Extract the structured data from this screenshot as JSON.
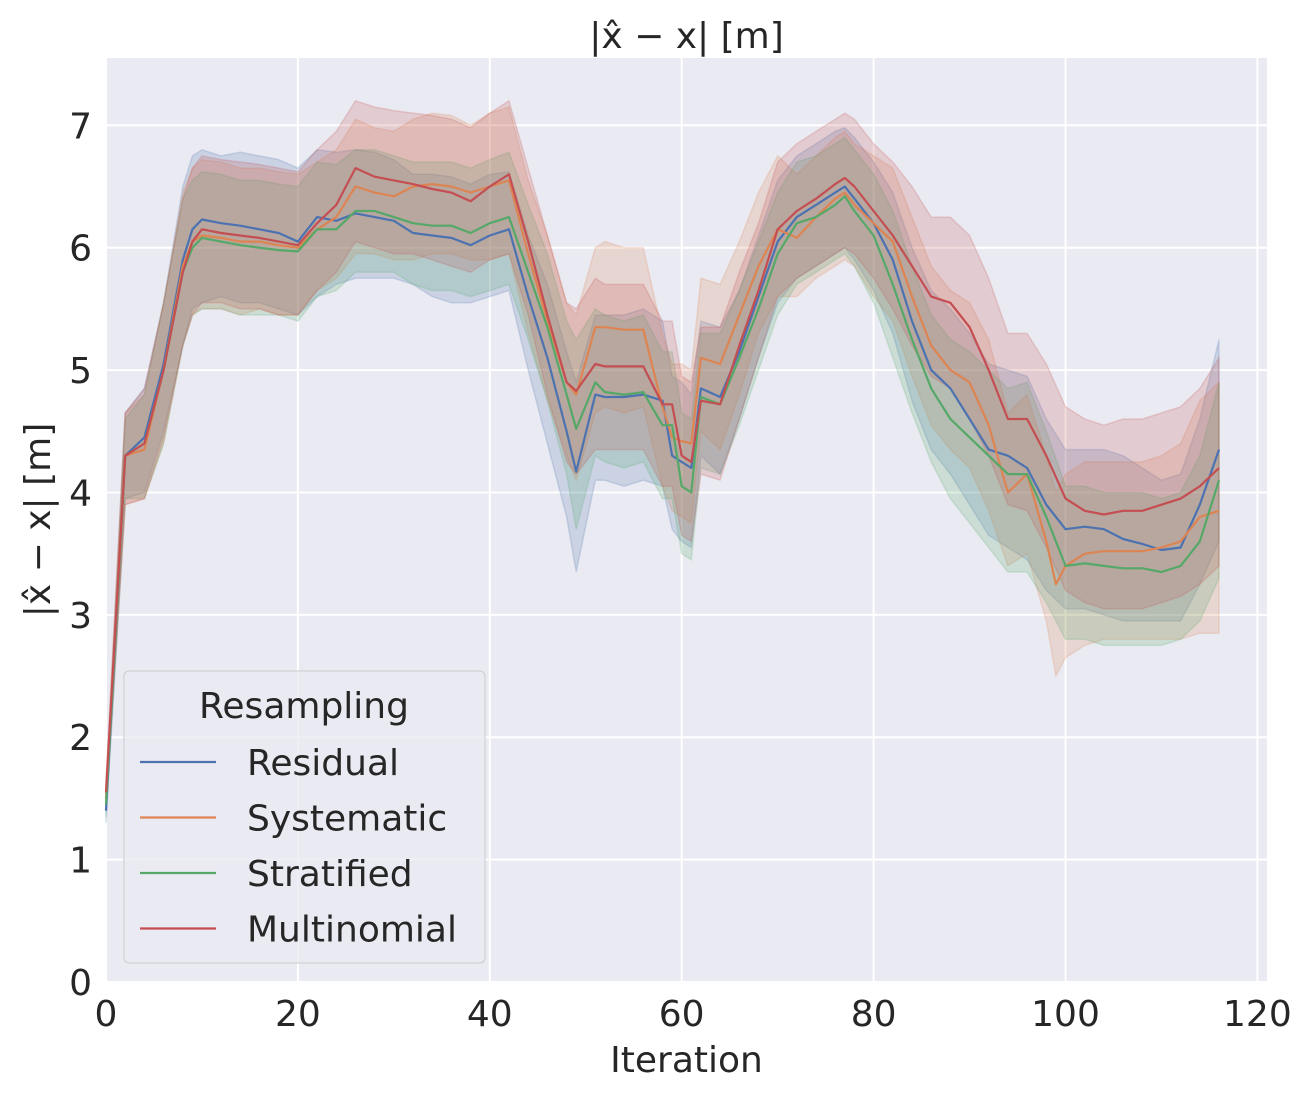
{
  "chart_data": {
    "type": "line",
    "title": "|x̂ − x| [m]",
    "xlabel": "Iteration",
    "ylabel": "|x̂ − x| [m]",
    "xlim": [
      0,
      121
    ],
    "ylim": [
      0,
      7.55
    ],
    "xticks": [
      0,
      20,
      40,
      60,
      80,
      100,
      120
    ],
    "yticks": [
      0,
      1,
      2,
      3,
      4,
      5,
      6,
      7
    ],
    "grid": true,
    "legend": {
      "title": "Resampling",
      "placement": "lower-left"
    },
    "series": [
      {
        "name": "Residual",
        "color": "#4c72b0",
        "x": [
          0,
          2,
          4,
          6,
          8,
          9,
          10,
          12,
          14,
          16,
          18,
          20,
          22,
          24,
          26,
          28,
          30,
          32,
          34,
          36,
          38,
          40,
          42,
          44,
          46,
          48,
          49,
          51,
          52,
          54,
          56,
          58,
          59,
          60,
          61,
          62,
          64,
          66,
          68,
          70,
          72,
          74,
          76,
          77,
          78,
          80,
          82,
          84,
          86,
          88,
          90,
          92,
          94,
          96,
          98,
          100,
          102,
          104,
          106,
          108,
          110,
          112,
          114,
          116
        ],
        "mean": [
          1.4,
          4.3,
          4.45,
          5.05,
          5.9,
          6.15,
          6.23,
          6.2,
          6.18,
          6.15,
          6.12,
          6.05,
          6.25,
          6.22,
          6.28,
          6.25,
          6.22,
          6.12,
          6.1,
          6.08,
          6.02,
          6.1,
          6.15,
          5.6,
          5.1,
          4.5,
          4.17,
          4.8,
          4.78,
          4.78,
          4.8,
          4.75,
          4.3,
          4.25,
          4.2,
          4.85,
          4.78,
          5.15,
          5.6,
          6.05,
          6.25,
          6.35,
          6.45,
          6.5,
          6.4,
          6.2,
          5.9,
          5.4,
          5.0,
          4.85,
          4.6,
          4.35,
          4.3,
          4.2,
          3.9,
          3.7,
          3.72,
          3.7,
          3.62,
          3.58,
          3.53,
          3.55,
          3.9,
          4.35
        ],
        "lower": [
          1.3,
          3.95,
          4.0,
          4.5,
          5.2,
          5.5,
          5.55,
          5.6,
          5.55,
          5.55,
          5.5,
          5.45,
          5.6,
          5.7,
          5.75,
          5.75,
          5.75,
          5.7,
          5.6,
          5.55,
          5.55,
          5.6,
          5.65,
          5.0,
          4.4,
          3.8,
          3.35,
          4.1,
          4.1,
          4.05,
          4.1,
          4.05,
          3.7,
          3.6,
          3.55,
          4.3,
          4.15,
          4.6,
          5.1,
          5.55,
          5.75,
          5.85,
          5.95,
          6.0,
          5.9,
          5.65,
          5.3,
          4.75,
          4.35,
          4.15,
          3.9,
          3.65,
          3.55,
          3.45,
          3.2,
          3.05,
          3.05,
          3.0,
          2.95,
          2.95,
          2.95,
          2.95,
          3.25,
          3.6
        ],
        "upper": [
          1.5,
          4.65,
          4.85,
          5.55,
          6.5,
          6.75,
          6.8,
          6.75,
          6.78,
          6.75,
          6.72,
          6.65,
          6.8,
          6.78,
          6.8,
          6.78,
          6.72,
          6.6,
          6.6,
          6.58,
          6.52,
          6.6,
          6.62,
          6.1,
          5.7,
          5.15,
          4.9,
          5.45,
          5.45,
          5.45,
          5.5,
          5.4,
          4.95,
          4.9,
          4.8,
          5.4,
          5.35,
          5.65,
          6.1,
          6.55,
          6.75,
          6.85,
          6.95,
          6.98,
          6.9,
          6.7,
          6.45,
          6.0,
          5.65,
          5.5,
          5.3,
          5.05,
          5.0,
          4.95,
          4.6,
          4.35,
          4.35,
          4.35,
          4.3,
          4.2,
          4.1,
          4.15,
          4.6,
          5.25
        ]
      },
      {
        "name": "Systematic",
        "color": "#dd8452",
        "x": [
          0,
          2,
          4,
          6,
          8,
          9,
          10,
          12,
          14,
          16,
          18,
          20,
          22,
          24,
          26,
          28,
          30,
          32,
          34,
          36,
          38,
          40,
          42,
          44,
          46,
          48,
          49,
          51,
          52,
          54,
          56,
          58,
          59,
          60,
          61,
          62,
          64,
          66,
          68,
          70,
          72,
          74,
          76,
          77,
          78,
          80,
          82,
          84,
          86,
          88,
          90,
          92,
          94,
          96,
          98,
          99,
          100,
          102,
          104,
          106,
          108,
          110,
          112,
          114,
          116
        ],
        "mean": [
          1.5,
          4.3,
          4.35,
          5.0,
          5.85,
          6.05,
          6.1,
          6.08,
          6.05,
          6.05,
          6.02,
          6.0,
          6.15,
          6.25,
          6.5,
          6.45,
          6.42,
          6.5,
          6.52,
          6.5,
          6.45,
          6.5,
          6.55,
          5.95,
          5.4,
          4.9,
          4.8,
          5.35,
          5.35,
          5.33,
          5.33,
          4.7,
          4.45,
          4.42,
          4.4,
          5.1,
          5.05,
          5.45,
          5.85,
          6.15,
          6.08,
          6.25,
          6.4,
          6.45,
          6.35,
          6.2,
          6.05,
          5.6,
          5.2,
          5.0,
          4.9,
          4.55,
          4.0,
          4.15,
          3.6,
          3.25,
          3.4,
          3.5,
          3.52,
          3.52,
          3.52,
          3.55,
          3.6,
          3.8,
          3.85
        ],
        "lower": [
          1.4,
          3.9,
          3.95,
          4.4,
          5.2,
          5.45,
          5.5,
          5.5,
          5.45,
          5.5,
          5.45,
          5.45,
          5.65,
          5.75,
          5.95,
          5.95,
          5.9,
          5.9,
          5.95,
          5.95,
          5.9,
          5.9,
          5.95,
          5.3,
          4.75,
          4.3,
          4.1,
          4.65,
          4.7,
          4.65,
          4.7,
          4.05,
          3.85,
          3.8,
          3.75,
          4.5,
          4.35,
          4.8,
          5.3,
          5.6,
          5.6,
          5.75,
          5.85,
          5.9,
          5.85,
          5.6,
          5.4,
          4.95,
          4.55,
          4.35,
          4.2,
          3.85,
          3.4,
          3.5,
          2.95,
          2.5,
          2.65,
          2.75,
          2.8,
          2.8,
          2.8,
          2.8,
          2.8,
          2.85,
          2.85
        ],
        "upper": [
          1.6,
          4.65,
          4.8,
          5.55,
          6.45,
          6.65,
          6.72,
          6.7,
          6.65,
          6.65,
          6.62,
          6.6,
          6.7,
          6.8,
          7.05,
          6.98,
          6.95,
          7.05,
          7.1,
          7.08,
          7.0,
          7.1,
          7.15,
          6.55,
          6.1,
          5.55,
          5.45,
          6.0,
          6.05,
          6.0,
          6.0,
          5.3,
          5.05,
          5.05,
          5.0,
          5.75,
          5.7,
          6.05,
          6.45,
          6.75,
          6.6,
          6.75,
          6.9,
          6.95,
          6.85,
          6.75,
          6.65,
          6.25,
          5.85,
          5.65,
          5.55,
          5.25,
          4.65,
          4.8,
          4.3,
          4.0,
          4.15,
          4.25,
          4.25,
          4.25,
          4.25,
          4.3,
          4.4,
          4.75,
          4.9
        ]
      },
      {
        "name": "Stratified",
        "color": "#55a868",
        "x": [
          0,
          2,
          4,
          6,
          8,
          9,
          10,
          12,
          14,
          16,
          18,
          20,
          22,
          24,
          26,
          28,
          30,
          32,
          34,
          36,
          38,
          40,
          42,
          44,
          46,
          48,
          49,
          51,
          52,
          54,
          56,
          58,
          59,
          60,
          61,
          62,
          64,
          66,
          68,
          70,
          72,
          74,
          76,
          77,
          78,
          80,
          82,
          84,
          86,
          88,
          90,
          92,
          94,
          96,
          98,
          100,
          102,
          104,
          106,
          108,
          110,
          112,
          114,
          116
        ],
        "mean": [
          1.45,
          4.3,
          4.4,
          5.0,
          5.8,
          6.0,
          6.08,
          6.05,
          6.02,
          6.0,
          5.98,
          5.97,
          6.15,
          6.15,
          6.3,
          6.3,
          6.25,
          6.2,
          6.18,
          6.18,
          6.12,
          6.2,
          6.25,
          5.8,
          5.35,
          4.8,
          4.52,
          4.9,
          4.82,
          4.8,
          4.82,
          4.55,
          4.55,
          4.05,
          4.0,
          4.78,
          4.72,
          5.1,
          5.5,
          5.95,
          6.2,
          6.25,
          6.35,
          6.42,
          6.3,
          6.1,
          5.7,
          5.25,
          4.85,
          4.6,
          4.45,
          4.3,
          4.15,
          4.15,
          3.8,
          3.4,
          3.42,
          3.4,
          3.38,
          3.38,
          3.35,
          3.4,
          3.6,
          4.1
        ],
        "lower": [
          1.35,
          3.95,
          3.95,
          4.4,
          5.2,
          5.45,
          5.5,
          5.5,
          5.45,
          5.45,
          5.45,
          5.4,
          5.6,
          5.65,
          5.8,
          5.8,
          5.8,
          5.7,
          5.65,
          5.65,
          5.6,
          5.65,
          5.7,
          5.25,
          4.75,
          4.15,
          3.7,
          4.3,
          4.25,
          4.2,
          4.25,
          3.95,
          3.95,
          3.5,
          3.45,
          4.2,
          4.15,
          4.55,
          5.0,
          5.45,
          5.7,
          5.8,
          5.9,
          5.95,
          5.85,
          5.55,
          5.1,
          4.65,
          4.25,
          3.95,
          3.75,
          3.55,
          3.35,
          3.35,
          3.1,
          2.8,
          2.8,
          2.75,
          2.75,
          2.75,
          2.75,
          2.8,
          2.95,
          3.3
        ],
        "upper": [
          1.55,
          4.6,
          4.8,
          5.55,
          6.4,
          6.55,
          6.62,
          6.6,
          6.55,
          6.55,
          6.52,
          6.5,
          6.7,
          6.68,
          6.8,
          6.8,
          6.75,
          6.7,
          6.7,
          6.7,
          6.65,
          6.72,
          6.78,
          6.35,
          5.95,
          5.4,
          5.25,
          5.5,
          5.45,
          5.4,
          5.45,
          5.15,
          5.15,
          4.65,
          4.6,
          5.3,
          5.3,
          5.65,
          6.05,
          6.45,
          6.7,
          6.75,
          6.85,
          6.9,
          6.8,
          6.6,
          6.3,
          5.85,
          5.45,
          5.25,
          5.15,
          5.0,
          4.85,
          4.9,
          4.5,
          4.05,
          4.05,
          4.0,
          4.0,
          4.0,
          3.95,
          4.0,
          4.3,
          4.9
        ]
      },
      {
        "name": "Multinomial",
        "color": "#c44e52",
        "x": [
          0,
          2,
          4,
          6,
          8,
          9,
          10,
          12,
          14,
          16,
          18,
          20,
          22,
          24,
          26,
          28,
          30,
          32,
          34,
          36,
          38,
          40,
          42,
          44,
          46,
          48,
          49,
          51,
          52,
          54,
          56,
          58,
          59,
          60,
          61,
          62,
          64,
          66,
          68,
          70,
          72,
          74,
          76,
          77,
          78,
          80,
          82,
          84,
          86,
          88,
          90,
          92,
          94,
          96,
          98,
          100,
          102,
          104,
          106,
          108,
          110,
          112,
          114,
          116
        ],
        "mean": [
          1.55,
          4.3,
          4.4,
          5.0,
          5.8,
          6.05,
          6.15,
          6.12,
          6.1,
          6.08,
          6.05,
          6.02,
          6.2,
          6.35,
          6.65,
          6.58,
          6.55,
          6.52,
          6.48,
          6.45,
          6.38,
          6.5,
          6.6,
          6.05,
          5.45,
          4.9,
          4.83,
          5.05,
          5.03,
          5.03,
          5.03,
          4.72,
          4.72,
          4.3,
          4.25,
          4.75,
          4.72,
          5.2,
          5.65,
          6.15,
          6.3,
          6.4,
          6.52,
          6.57,
          6.5,
          6.3,
          6.1,
          5.85,
          5.6,
          5.55,
          5.35,
          5.0,
          4.6,
          4.6,
          4.3,
          3.95,
          3.85,
          3.82,
          3.85,
          3.85,
          3.9,
          3.95,
          4.05,
          4.2
        ],
        "lower": [
          1.45,
          3.9,
          3.95,
          4.45,
          5.2,
          5.45,
          5.55,
          5.55,
          5.5,
          5.5,
          5.45,
          5.45,
          5.65,
          5.8,
          6.05,
          6.0,
          5.95,
          5.95,
          5.9,
          5.85,
          5.8,
          5.9,
          5.95,
          5.45,
          4.8,
          4.25,
          4.15,
          4.35,
          4.35,
          4.35,
          4.35,
          4.05,
          4.05,
          3.65,
          3.6,
          4.15,
          4.1,
          4.6,
          5.1,
          5.6,
          5.75,
          5.85,
          5.95,
          6.0,
          5.95,
          5.75,
          5.5,
          5.2,
          4.95,
          4.85,
          4.6,
          4.3,
          3.9,
          3.85,
          3.55,
          3.2,
          3.1,
          3.05,
          3.05,
          3.05,
          3.1,
          3.15,
          3.25,
          3.4
        ],
        "upper": [
          1.65,
          4.65,
          4.85,
          5.55,
          6.4,
          6.65,
          6.75,
          6.72,
          6.7,
          6.68,
          6.65,
          6.62,
          6.8,
          6.95,
          7.2,
          7.15,
          7.12,
          7.1,
          7.08,
          7.05,
          6.98,
          7.1,
          7.2,
          6.65,
          6.1,
          5.55,
          5.5,
          5.75,
          5.7,
          5.7,
          5.7,
          5.4,
          5.4,
          4.95,
          4.9,
          5.35,
          5.35,
          5.8,
          6.2,
          6.7,
          6.85,
          6.95,
          7.05,
          7.1,
          7.05,
          6.85,
          6.7,
          6.5,
          6.25,
          6.25,
          6.1,
          5.75,
          5.3,
          5.3,
          5.05,
          4.7,
          4.6,
          4.55,
          4.6,
          4.6,
          4.65,
          4.7,
          4.85,
          5.1
        ]
      }
    ]
  }
}
